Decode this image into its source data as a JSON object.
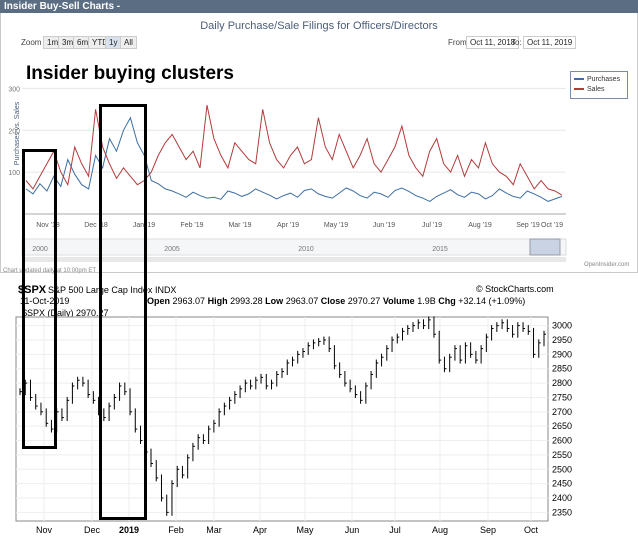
{
  "top_panel": {
    "header": "Insider Buy-Sell Charts -",
    "title": "Daily Purchase/Sale Filings for Officers/Directors",
    "zoom_label": "Zoom",
    "zoom_buttons": [
      "1m",
      "3m",
      "6m",
      "YTD",
      "1y",
      "All"
    ],
    "zoom_selected": "1y",
    "from_label": "From:",
    "from_date": "Oct 11, 2018",
    "to_label": "To:",
    "to_date": "Oct 11, 2019",
    "annotation": "Insider buying clusters",
    "ylabel": "Purchases vs. Sales",
    "legend": [
      "Purchases",
      "Sales"
    ],
    "footnote": "Chart updated daily at 10:00pm ET",
    "source": "OpenInsider.com",
    "colors": {
      "purchases": "#3f6fa3",
      "sales": "#b23b3b",
      "header_bg": "#5a6d83"
    }
  },
  "bottom_panel": {
    "ticker": "$SPX",
    "name": "S&P 500 Large Cap Index",
    "exchange": "INDX",
    "credit": "© StockCharts.com",
    "date": "11-Oct-2019",
    "open_label": "Open",
    "open": "2963.07",
    "high_label": "High",
    "high": "2993.28",
    "low_label": "Low",
    "low": "2963.07",
    "close_label": "Close",
    "close": "2970.27",
    "volume_label": "Volume",
    "volume": "1.9B",
    "chg_label": "Chg",
    "chg": "+32.14 (+1.09%)",
    "legend_text": "$SPX (Daily) 2970.27"
  },
  "chart_data": [
    {
      "type": "line",
      "title": "Daily Purchase/Sale Filings for Officers/Directors",
      "ylabel": "Purchases vs. Sales",
      "x_ticks": [
        "Nov '18",
        "Dec '18",
        "Jan '19",
        "Feb '19",
        "Mar '19",
        "Apr '19",
        "May '19",
        "Jun '19",
        "Jul '19",
        "Aug '19",
        "Sep '19",
        "Oct '19"
      ],
      "y_ticks": [
        100,
        200,
        300
      ],
      "ylim": [
        0,
        320
      ],
      "navigator_ticks": [
        "2000",
        "2005",
        "2010",
        "2015"
      ],
      "series": [
        {
          "name": "Purchases",
          "values": [
            60,
            48,
            72,
            55,
            90,
            66,
            130,
            95,
            70,
            60,
            140,
            110,
            180,
            150,
            200,
            230,
            170,
            140,
            80,
            72,
            60,
            55,
            48,
            40,
            52,
            44,
            38,
            40,
            35,
            55,
            50,
            42,
            48,
            60,
            52,
            45,
            36,
            44,
            50,
            40,
            56,
            60,
            48,
            42,
            38,
            50,
            62,
            55,
            44,
            38,
            52,
            48,
            40,
            56,
            62,
            54,
            44,
            38,
            30,
            42,
            50,
            58,
            46,
            40,
            52,
            48,
            36,
            44,
            60,
            50,
            42,
            38,
            55,
            48,
            40,
            30,
            36,
            42
          ]
        },
        {
          "name": "Sales",
          "values": [
            80,
            60,
            90,
            120,
            150,
            100,
            70,
            160,
            120,
            90,
            250,
            160,
            120,
            85,
            110,
            90,
            70,
            80,
            100,
            140,
            170,
            190,
            160,
            130,
            150,
            110,
            260,
            180,
            140,
            110,
            170,
            150,
            130,
            120,
            250,
            170,
            130,
            110,
            140,
            160,
            120,
            130,
            230,
            160,
            130,
            190,
            150,
            110,
            140,
            180,
            120,
            100,
            130,
            160,
            210,
            140,
            110,
            90,
            150,
            180,
            120,
            100,
            140,
            90,
            130,
            110,
            170,
            120,
            100,
            90,
            70,
            120,
            90,
            60,
            80,
            60,
            55,
            45
          ]
        }
      ]
    },
    {
      "type": "ohlc",
      "title": "$SPX S&P 500 Large Cap Index INDX",
      "series_name": "$SPX (Daily)",
      "x_ticks": [
        "Nov",
        "Dec",
        "2019",
        "Feb",
        "Mar",
        "Apr",
        "May",
        "Jun",
        "Jul",
        "Aug",
        "Sep",
        "Oct"
      ],
      "y_ticks": [
        2350,
        2400,
        2450,
        2500,
        2550,
        2600,
        2650,
        2700,
        2750,
        2800,
        2850,
        2900,
        2950,
        3000
      ],
      "ylim": [
        2320,
        3030
      ],
      "closes": [
        2770,
        2800,
        2750,
        2720,
        2700,
        2660,
        2640,
        2700,
        2680,
        2740,
        2790,
        2810,
        2800,
        2760,
        2740,
        2700,
        2680,
        2720,
        2750,
        2790,
        2770,
        2700,
        2640,
        2600,
        2560,
        2520,
        2470,
        2400,
        2350,
        2450,
        2500,
        2480,
        2540,
        2580,
        2610,
        2600,
        2640,
        2660,
        2700,
        2720,
        2740,
        2760,
        2780,
        2800,
        2790,
        2810,
        2820,
        2790,
        2800,
        2830,
        2840,
        2870,
        2880,
        2900,
        2910,
        2930,
        2940,
        2945,
        2950,
        2920,
        2860,
        2830,
        2800,
        2780,
        2760,
        2740,
        2790,
        2830,
        2870,
        2890,
        2920,
        2950,
        2960,
        2980,
        2990,
        3000,
        3010,
        3000,
        3020,
        2970,
        2880,
        2850,
        2890,
        2920,
        2880,
        2930,
        2900,
        2880,
        2920,
        2960,
        2990,
        3000,
        3010,
        2990,
        2970,
        3000,
        2990,
        2980,
        2900,
        2940,
        2970
      ]
    }
  ]
}
